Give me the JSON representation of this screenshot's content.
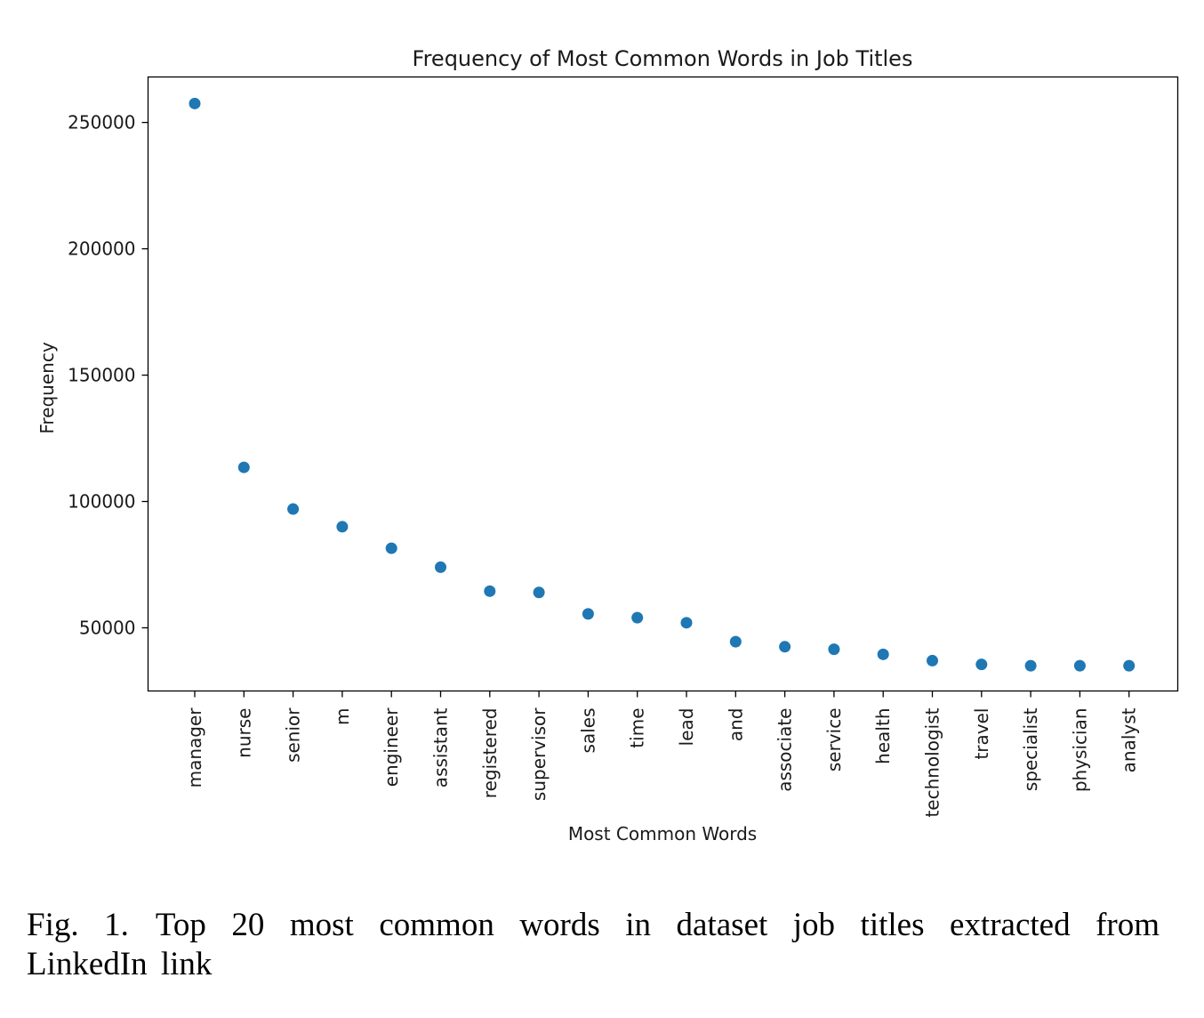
{
  "chart_data": {
    "type": "scatter",
    "title": "Frequency of Most Common Words in Job Titles",
    "xlabel": "Most Common Words",
    "ylabel": "Frequency",
    "categories": [
      "manager",
      "nurse",
      "senior",
      "m",
      "engineer",
      "assistant",
      "registered",
      "supervisor",
      "sales",
      "time",
      "lead",
      "and",
      "associate",
      "service",
      "health",
      "technologist",
      "travel",
      "specialist",
      "physician",
      "analyst"
    ],
    "values": [
      257500,
      113500,
      97000,
      90000,
      81500,
      74000,
      64500,
      64000,
      55500,
      54000,
      52000,
      44500,
      42500,
      41500,
      39500,
      37000,
      35500,
      35000,
      35000,
      35000
    ],
    "ylim": [
      25000,
      268000
    ],
    "yticks": [
      50000,
      100000,
      150000,
      200000,
      250000
    ],
    "grid": false,
    "marker_color": "#1f77b4"
  },
  "caption": {
    "label": "Fig. 1.",
    "text": "Top 20 most common words in dataset job titles extracted from LinkedIn link"
  }
}
